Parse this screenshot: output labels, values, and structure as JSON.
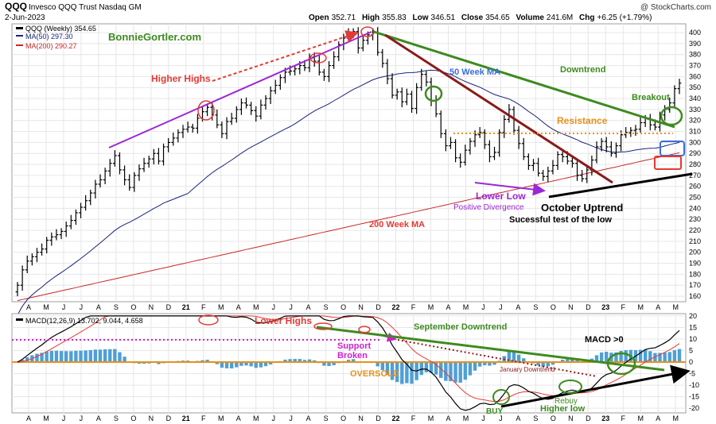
{
  "header": {
    "symbol": "QQQ",
    "name": "Invesco QQQ Trust Nasdaq GM",
    "copyright": "@ StockCharts.com",
    "date": "2-Jun-2023",
    "open_label": "Open",
    "open": "352.71",
    "high_label": "High",
    "high": "355.83",
    "low_label": "Low",
    "low": "346.51",
    "close_label": "Close",
    "close": "354.65",
    "volume_label": "Volume",
    "volume": "241.6M",
    "chg_label": "Chg",
    "chg": "+6.25 (+1.79%)"
  },
  "legend": {
    "price": "QQQ (Weekly) 354.65",
    "ma50": "MA(50) 297.30",
    "ma200": "MA(200) 290.27",
    "macd": "MACD(12,26,9) 13.702, 9.044, 4.658"
  },
  "colors": {
    "ma50": "#1a237e",
    "ma200": "#c62828",
    "purple": "#9c27d6",
    "green": "#3d8b1f",
    "darkred": "#8b1a1a",
    "orange": "#e8901a",
    "histogram": "#4f9fd6",
    "macd_signal": "#e53935",
    "blue_box": "#3a6fd8",
    "magenta": "#d020d0"
  },
  "chart_data": [
    {
      "type": "candlestick",
      "title": "QQQ Invesco QQQ Trust Nasdaq GM (Weekly)",
      "ylim": [
        155,
        408
      ],
      "yticks": [
        160,
        170,
        180,
        190,
        200,
        210,
        220,
        230,
        240,
        250,
        260,
        270,
        280,
        290,
        300,
        310,
        320,
        330,
        340,
        350,
        360,
        370,
        380,
        390,
        400
      ],
      "xticks": [
        "A",
        "M",
        "J",
        "J",
        "A",
        "S",
        "O",
        "N",
        "D",
        "21",
        "F",
        "M",
        "A",
        "M",
        "J",
        "J",
        "A",
        "S",
        "O",
        "N",
        "D",
        "22",
        "F",
        "M",
        "A",
        "M",
        "J",
        "J",
        "A",
        "S",
        "O",
        "N",
        "D",
        "23",
        "F",
        "M",
        "A",
        "M"
      ],
      "close_weekly": [
        170,
        184,
        192,
        196,
        200,
        203,
        211,
        214,
        216,
        219,
        224,
        229,
        236,
        241,
        247,
        254,
        262,
        266,
        274,
        281,
        288,
        275,
        266,
        259,
        270,
        276,
        281,
        285,
        290,
        283,
        296,
        300,
        304,
        309,
        312,
        314,
        313,
        322,
        328,
        332,
        325,
        316,
        308,
        319,
        322,
        330,
        336,
        334,
        329,
        324,
        334,
        340,
        347,
        352,
        359,
        364,
        365,
        367,
        370,
        368,
        378,
        374,
        364,
        360,
        370,
        378,
        389,
        395,
        399,
        401,
        386,
        393,
        398,
        400,
        382,
        372,
        358,
        343,
        346,
        337,
        344,
        331,
        350,
        362,
        355,
        338,
        326,
        308,
        297,
        300,
        286,
        282,
        293,
        301,
        307,
        309,
        298,
        287,
        291,
        309,
        321,
        330,
        311,
        299,
        287,
        279,
        281,
        272,
        269,
        274,
        279,
        289,
        287,
        283,
        281,
        270,
        267,
        275,
        284,
        296,
        301,
        296,
        290,
        297,
        307,
        309,
        311,
        312,
        318,
        322,
        316,
        314,
        325,
        330,
        336,
        349,
        354
      ],
      "series": [
        {
          "name": "MA(50)",
          "value": 297.3
        },
        {
          "name": "MA(200)",
          "value": 290.27
        }
      ],
      "annotations": [
        {
          "text": "BonnieGortler.com"
        },
        {
          "text": "Higher Highs"
        },
        {
          "text": "50 Week MA"
        },
        {
          "text": "Downtrend"
        },
        {
          "text": "Breakout"
        },
        {
          "text": "Resistance"
        },
        {
          "text": "Lower Low"
        },
        {
          "text": "Positive Divergence"
        },
        {
          "text": "October Uptrend"
        },
        {
          "text": "Sucessful test of the low"
        },
        {
          "text": "200 Week MA"
        }
      ]
    },
    {
      "type": "line",
      "title": "MACD(12,26,9)",
      "ylim": [
        -22,
        21
      ],
      "yticks": [
        20,
        15,
        10,
        5,
        0,
        -5,
        -10,
        -15,
        -20
      ],
      "xticks": [
        "A",
        "M",
        "J",
        "J",
        "A",
        "S",
        "O",
        "N",
        "D",
        "21",
        "F",
        "M",
        "A",
        "M",
        "J",
        "J",
        "A",
        "S",
        "O",
        "N",
        "D",
        "22",
        "F",
        "M",
        "A",
        "M",
        "J",
        "J",
        "A",
        "S",
        "O",
        "N",
        "D",
        "23",
        "F",
        "M",
        "A",
        "M"
      ],
      "series": [
        {
          "name": "MACD",
          "value": 13.702
        },
        {
          "name": "Signal",
          "value": 9.044
        },
        {
          "name": "Histogram",
          "value": 4.658
        }
      ],
      "annotations": [
        {
          "text": "Lower Highs"
        },
        {
          "text": "September Downtrend"
        },
        {
          "text": "MACD >0"
        },
        {
          "text": "Support"
        },
        {
          "text": "Broken"
        },
        {
          "text": "OVERSOLD"
        },
        {
          "text": "January Downtrend"
        },
        {
          "text": "BUY"
        },
        {
          "text": "Rebuy"
        },
        {
          "text": "Higher low"
        }
      ]
    }
  ]
}
